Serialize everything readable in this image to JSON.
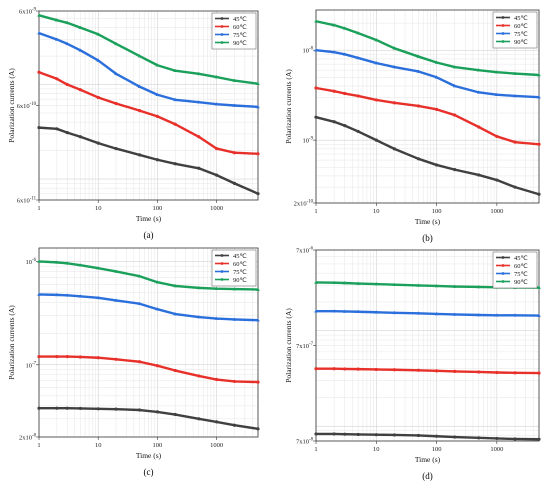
{
  "chart_data": [
    {
      "panel": "(a)",
      "type": "line",
      "xlabel": "Time (s)",
      "ylabel": "Polarization currents (A)",
      "xscale": "log",
      "yscale": "log",
      "xlim": [
        1,
        5000
      ],
      "ylim": [
        6e-11,
        6e-09
      ],
      "xticks": [
        "1",
        "10",
        "100",
        "1000"
      ],
      "yticks": [
        "6x10-9",
        "6x10-10",
        "6x10-11"
      ],
      "ytick_values": [
        6e-09,
        6e-10,
        6e-11
      ],
      "grid": true,
      "legend_position": "top-right",
      "series": [
        {
          "name": "45℃",
          "color": "#404040",
          "x": [
            1,
            2,
            3,
            5,
            10,
            20,
            50,
            100,
            200,
            500,
            1000,
            2000,
            5000
          ],
          "y": [
            3.5e-10,
            3.4e-10,
            3.1e-10,
            2.8e-10,
            2.4e-10,
            2.1e-10,
            1.8e-10,
            1.6e-10,
            1.45e-10,
            1.3e-10,
            1.1e-10,
            9e-11,
            7e-11
          ]
        },
        {
          "name": "60℃",
          "color": "#e8302a",
          "x": [
            1,
            2,
            3,
            5,
            10,
            20,
            50,
            100,
            200,
            500,
            1000,
            2000,
            5000
          ],
          "y": [
            1.35e-09,
            1.15e-09,
            1e-09,
            8.8e-10,
            7.3e-10,
            6.3e-10,
            5.3e-10,
            4.6e-10,
            3.8e-10,
            2.8e-10,
            2.1e-10,
            1.9e-10,
            1.85e-10
          ]
        },
        {
          "name": "75℃",
          "color": "#2a6fdb",
          "x": [
            1,
            2,
            3,
            5,
            10,
            20,
            50,
            100,
            200,
            500,
            1000,
            2000,
            5000
          ],
          "y": [
            3.5e-09,
            3e-09,
            2.7e-09,
            2.3e-09,
            1.8e-09,
            1.3e-09,
            9.5e-10,
            7.8e-10,
            6.9e-10,
            6.5e-10,
            6.2e-10,
            6e-10,
            5.8e-10
          ]
        },
        {
          "name": "90℃",
          "color": "#1aa05a",
          "x": [
            1,
            2,
            3,
            5,
            10,
            20,
            50,
            100,
            200,
            500,
            1000,
            2000,
            5000
          ],
          "y": [
            5.4e-09,
            4.8e-09,
            4.5e-09,
            4e-09,
            3.4e-09,
            2.7e-09,
            2e-09,
            1.6e-09,
            1.4e-09,
            1.3e-09,
            1.2e-09,
            1.1e-09,
            1.02e-09
          ]
        }
      ]
    },
    {
      "panel": "(b)",
      "type": "line",
      "xlabel": "Time (s)",
      "ylabel": "Polarization currents (A)",
      "xscale": "log",
      "yscale": "log",
      "xlim": [
        1,
        5000
      ],
      "ylim": [
        2e-10,
        2.8e-08
      ],
      "xticks": [
        "1",
        "10",
        "100",
        "1000"
      ],
      "yticks": [
        "10-8",
        "10-9",
        "2x10-10"
      ],
      "ytick_values": [
        1e-08,
        1e-09,
        2e-10
      ],
      "grid": true,
      "legend_position": "top-right",
      "series": [
        {
          "name": "45℃",
          "color": "#404040",
          "x": [
            1,
            2,
            3,
            5,
            10,
            20,
            50,
            100,
            200,
            500,
            1000,
            2000,
            5000
          ],
          "y": [
            1.8e-09,
            1.6e-09,
            1.45e-09,
            1.25e-09,
            1e-09,
            8e-10,
            6.2e-10,
            5.3e-10,
            4.7e-10,
            4.1e-10,
            3.6e-10,
            3e-10,
            2.5e-10
          ]
        },
        {
          "name": "60℃",
          "color": "#e8302a",
          "x": [
            1,
            2,
            3,
            5,
            10,
            20,
            50,
            100,
            200,
            500,
            1000,
            2000,
            5000
          ],
          "y": [
            3.8e-09,
            3.5e-09,
            3.3e-09,
            3.1e-09,
            2.8e-09,
            2.6e-09,
            2.4e-09,
            2.2e-09,
            1.9e-09,
            1.4e-09,
            1.1e-09,
            9.5e-10,
            9e-10
          ]
        },
        {
          "name": "75℃",
          "color": "#2a6fdb",
          "x": [
            1,
            2,
            3,
            5,
            10,
            20,
            50,
            100,
            200,
            500,
            1000,
            2000,
            5000
          ],
          "y": [
            1e-08,
            9.5e-09,
            9e-09,
            8.2e-09,
            7.2e-09,
            6.5e-09,
            5.8e-09,
            5e-09,
            4e-09,
            3.4e-09,
            3.2e-09,
            3.1e-09,
            3e-09
          ]
        },
        {
          "name": "90℃",
          "color": "#1aa05a",
          "x": [
            1,
            2,
            3,
            5,
            10,
            20,
            50,
            100,
            200,
            500,
            1000,
            2000,
            5000
          ],
          "y": [
            2.1e-08,
            1.9e-08,
            1.75e-08,
            1.55e-08,
            1.3e-08,
            1.05e-08,
            8.5e-09,
            7.3e-09,
            6.5e-09,
            6e-09,
            5.7e-09,
            5.5e-09,
            5.3e-09
          ]
        }
      ]
    },
    {
      "panel": "(c)",
      "type": "line",
      "xlabel": "Time (s)",
      "ylabel": "Polarization currents (A)",
      "xscale": "log",
      "yscale": "log",
      "xlim": [
        1,
        5000
      ],
      "ylim": [
        2e-08,
        1.35e-06
      ],
      "xticks": [
        "1",
        "10",
        "100",
        "1000"
      ],
      "yticks": [
        "10-6",
        "10-7",
        "2x10-8"
      ],
      "ytick_values": [
        1e-06,
        1e-07,
        2e-08
      ],
      "grid": true,
      "legend_position": "top-right",
      "series": [
        {
          "name": "45℃",
          "color": "#404040",
          "x": [
            1,
            2,
            3,
            5,
            10,
            20,
            50,
            100,
            200,
            500,
            1000,
            2000,
            5000
          ],
          "y": [
            3.8e-08,
            3.8e-08,
            3.8e-08,
            3.78e-08,
            3.75e-08,
            3.72e-08,
            3.65e-08,
            3.5e-08,
            3.3e-08,
            3e-08,
            2.8e-08,
            2.6e-08,
            2.4e-08
          ]
        },
        {
          "name": "60℃",
          "color": "#e8302a",
          "x": [
            1,
            2,
            3,
            5,
            10,
            20,
            50,
            100,
            200,
            500,
            1000,
            2000,
            5000
          ],
          "y": [
            1.2e-07,
            1.2e-07,
            1.2e-07,
            1.19e-07,
            1.17e-07,
            1.13e-07,
            1.07e-07,
            9.8e-08,
            8.8e-08,
            7.8e-08,
            7.2e-08,
            6.9e-08,
            6.8e-08
          ]
        },
        {
          "name": "75℃",
          "color": "#2a6fdb",
          "x": [
            1,
            2,
            3,
            5,
            10,
            20,
            50,
            100,
            200,
            500,
            1000,
            2000,
            5000
          ],
          "y": [
            4.8e-07,
            4.75e-07,
            4.7e-07,
            4.6e-07,
            4.45e-07,
            4.2e-07,
            3.9e-07,
            3.45e-07,
            3.1e-07,
            2.9e-07,
            2.8e-07,
            2.75e-07,
            2.7e-07
          ]
        },
        {
          "name": "90℃",
          "color": "#1aa05a",
          "x": [
            1,
            2,
            3,
            5,
            10,
            20,
            50,
            100,
            200,
            500,
            1000,
            2000,
            5000
          ],
          "y": [
            1e-06,
            9.8e-07,
            9.6e-07,
            9.2e-07,
            8.6e-07,
            8e-07,
            7.2e-07,
            6.3e-07,
            5.8e-07,
            5.55e-07,
            5.45e-07,
            5.4e-07,
            5.35e-07
          ]
        }
      ]
    },
    {
      "panel": "(d)",
      "type": "line",
      "xlabel": "Time (s)",
      "ylabel": "Polarization currents (A)",
      "xscale": "log",
      "yscale": "log",
      "xlim": [
        1,
        5000
      ],
      "ylim": [
        7e-08,
        7e-06
      ],
      "xticks": [
        "1",
        "10",
        "100",
        "1000"
      ],
      "yticks": [
        "7x10-6",
        "7x10-7",
        "7x10-8"
      ],
      "ytick_values": [
        7e-06,
        7e-07,
        7e-08
      ],
      "grid": true,
      "legend_position": "top-right",
      "series": [
        {
          "name": "45℃",
          "color": "#404040",
          "x": [
            1,
            2,
            3,
            5,
            10,
            20,
            50,
            100,
            200,
            500,
            1000,
            2000,
            5000
          ],
          "y": [
            8.3e-08,
            8.3e-08,
            8.25e-08,
            8.2e-08,
            8.15e-08,
            8.1e-08,
            8e-08,
            7.85e-08,
            7.7e-08,
            7.55e-08,
            7.45e-08,
            7.35e-08,
            7.3e-08
          ]
        },
        {
          "name": "60℃",
          "color": "#e8302a",
          "x": [
            1,
            2,
            3,
            5,
            10,
            20,
            50,
            100,
            200,
            500,
            1000,
            2000,
            5000
          ],
          "y": [
            4e-07,
            4e-07,
            3.98e-07,
            3.96e-07,
            3.93e-07,
            3.9e-07,
            3.85e-07,
            3.8e-07,
            3.75e-07,
            3.7e-07,
            3.65e-07,
            3.62e-07,
            3.6e-07
          ]
        },
        {
          "name": "75℃",
          "color": "#2a6fdb",
          "x": [
            1,
            2,
            3,
            5,
            10,
            20,
            50,
            100,
            200,
            500,
            1000,
            2000,
            5000
          ],
          "y": [
            1.6e-06,
            1.6e-06,
            1.59e-06,
            1.58e-06,
            1.56e-06,
            1.54e-06,
            1.52e-06,
            1.5e-06,
            1.48e-06,
            1.46e-06,
            1.45e-06,
            1.45e-06,
            1.44e-06
          ]
        },
        {
          "name": "90℃",
          "color": "#1aa05a",
          "x": [
            1,
            2,
            3,
            5,
            10,
            20,
            50,
            100,
            200,
            500,
            1000,
            2000,
            5000
          ],
          "y": [
            3.2e-06,
            3.18e-06,
            3.16e-06,
            3.12e-06,
            3.08e-06,
            3.03e-06,
            2.98e-06,
            2.94e-06,
            2.9e-06,
            2.87e-06,
            2.85e-06,
            2.84e-06,
            2.83e-06
          ]
        }
      ]
    }
  ]
}
